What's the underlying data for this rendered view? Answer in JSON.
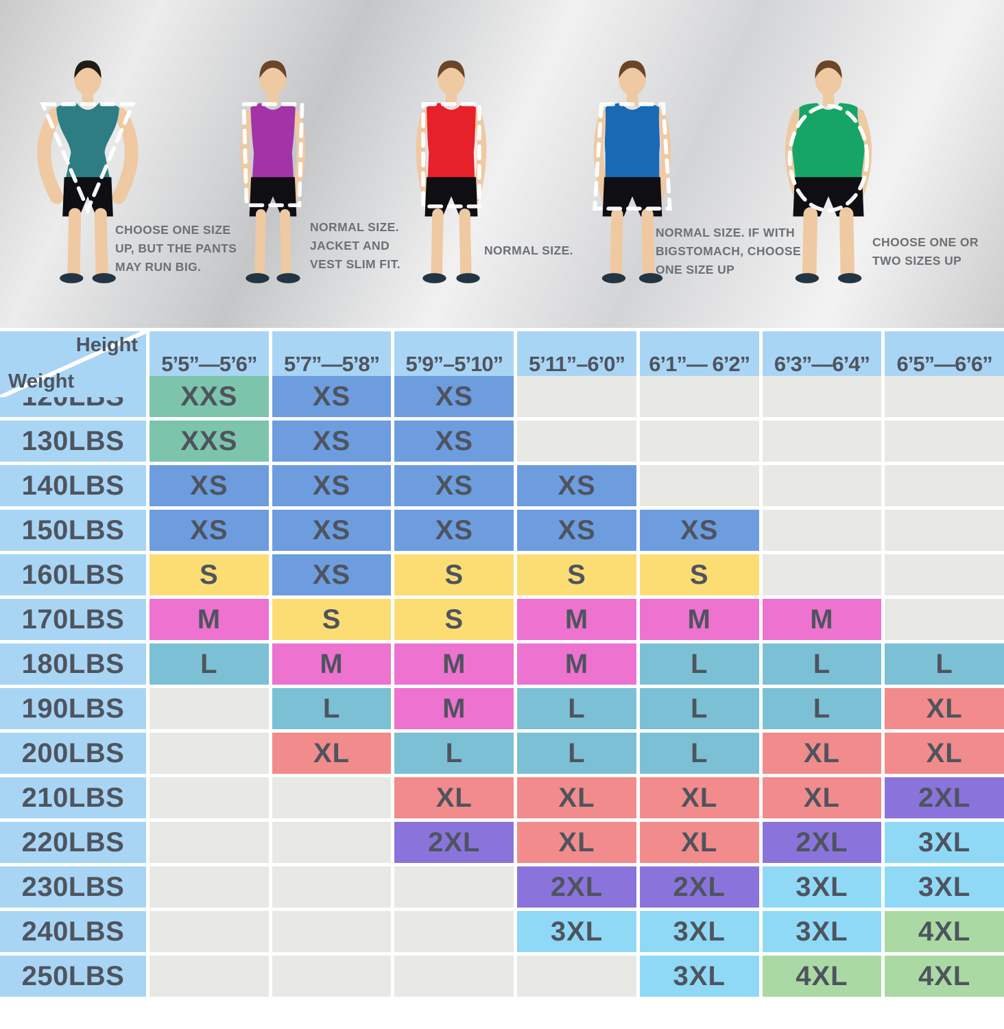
{
  "figures": [
    {
      "id": "inverted-triangle-build",
      "body_type": "muscular",
      "shirt_color": "#2e7d85",
      "hair_color": "#211b16",
      "overlay": "inverted-triangle",
      "caption": "CHOOSE ONE SIZE UP, BUT THE PANTS MAY RUN BIG."
    },
    {
      "id": "slim-build",
      "body_type": "slim",
      "shirt_color": "#a234a8",
      "hair_color": "#6b4527",
      "overlay": "slim-rectangle",
      "caption": "NORMAL SIZE. JACKET AND VEST SLIM FIT."
    },
    {
      "id": "normal-build",
      "body_type": "normal",
      "shirt_color": "#e62129",
      "hair_color": "#6b4527",
      "overlay": "rectangle",
      "caption": "NORMAL SIZE."
    },
    {
      "id": "stocky-build",
      "body_type": "stocky",
      "shirt_color": "#1a69b5",
      "hair_color": "#6b4527",
      "overlay": "wide-rectangle",
      "caption": "NORMAL SIZE. IF WITH BIGSTOMACH, CHOOSE ONE SIZE UP"
    },
    {
      "id": "heavy-build",
      "body_type": "heavy",
      "shirt_color": "#16a566",
      "hair_color": "#6b4527",
      "overlay": "oval",
      "caption": "CHOOSE ONE OR TWO SIZES UP"
    }
  ],
  "chart_data": {
    "type": "table",
    "corner": {
      "height_label": "Height",
      "weight_label": "Weight"
    },
    "columns": [
      "5’5”—5’6”",
      "5’7”—5’8”",
      "5’9”–5’10”",
      "5’11”–6’0”",
      "6’1”— 6’2”",
      "6’3”—6’4”",
      "6’5”—6’6”"
    ],
    "rows": [
      {
        "weight": "120LBS",
        "sizes": [
          "XXS",
          "XS",
          "XS",
          "",
          "",
          "",
          ""
        ]
      },
      {
        "weight": "130LBS",
        "sizes": [
          "XXS",
          "XS",
          "XS",
          "",
          "",
          "",
          ""
        ]
      },
      {
        "weight": "140LBS",
        "sizes": [
          "XS",
          "XS",
          "XS",
          "XS",
          "",
          "",
          ""
        ]
      },
      {
        "weight": "150LBS",
        "sizes": [
          "XS",
          "XS",
          "XS",
          "XS",
          "XS",
          "",
          ""
        ]
      },
      {
        "weight": "160LBS",
        "sizes": [
          "S",
          "XS",
          "S",
          "S",
          "S",
          "",
          ""
        ]
      },
      {
        "weight": "170LBS",
        "sizes": [
          "M",
          "S",
          "S",
          "M",
          "M",
          "M",
          ""
        ]
      },
      {
        "weight": "180LBS",
        "sizes": [
          "L",
          "M",
          "M",
          "M",
          "L",
          "L",
          "L"
        ]
      },
      {
        "weight": "190LBS",
        "sizes": [
          "",
          "L",
          "M",
          "L",
          "L",
          "L",
          "XL"
        ]
      },
      {
        "weight": "200LBS",
        "sizes": [
          "",
          "XL",
          "L",
          "L",
          "L",
          "XL",
          "XL"
        ]
      },
      {
        "weight": "210LBS",
        "sizes": [
          "",
          "",
          "XL",
          "XL",
          "XL",
          "XL",
          "2XL"
        ]
      },
      {
        "weight": "220LBS",
        "sizes": [
          "",
          "",
          "2XL",
          "XL",
          "XL",
          "2XL",
          "3XL"
        ]
      },
      {
        "weight": "230LBS",
        "sizes": [
          "",
          "",
          "",
          "2XL",
          "2XL",
          "3XL",
          "3XL"
        ]
      },
      {
        "weight": "240LBS",
        "sizes": [
          "",
          "",
          "",
          "3XL",
          "3XL",
          "3XL",
          "4XL"
        ]
      },
      {
        "weight": "250LBS",
        "sizes": [
          "",
          "",
          "",
          "",
          "3XL",
          "4XL",
          "4XL"
        ]
      }
    ],
    "size_colors": {
      "XXS": "#7cc4ab",
      "XS": "#6d9ddf",
      "S": "#fbdd74",
      "M": "#ee72cf",
      "L": "#7cc0d5",
      "XL": "#f28b8b",
      "2XL": "#8a74dc",
      "3XL": "#8fd9f7",
      "4XL": "#abd9a4",
      "empty": "#e8e8e5",
      "header_bg": "#a9d5f5",
      "text": "#4e545e"
    }
  }
}
